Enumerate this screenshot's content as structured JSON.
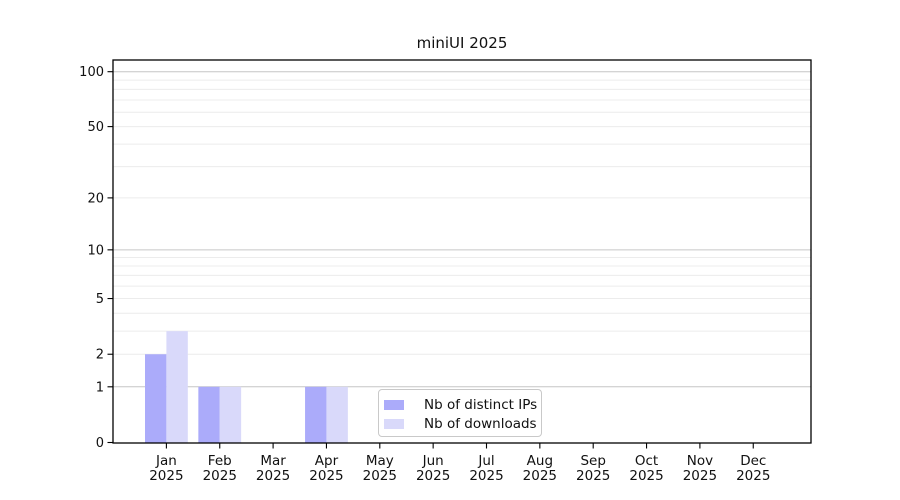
{
  "figure": {
    "background": "#ffffff"
  },
  "chart_data": {
    "type": "bar",
    "title": "miniUI 2025",
    "scale": "log1p",
    "categories": [
      "Jan",
      "Feb",
      "Mar",
      "Apr",
      "May",
      "Jun",
      "Jul",
      "Aug",
      "Sep",
      "Oct",
      "Nov",
      "Dec"
    ],
    "category_year": "2025",
    "series": [
      {
        "name": "Nb of distinct IPs",
        "color": "#ababfa",
        "values": [
          2,
          1,
          0,
          1,
          0,
          0,
          0,
          0,
          0,
          0,
          0,
          0
        ]
      },
      {
        "name": "Nb of downloads",
        "color": "#d9d9fa",
        "values": [
          3,
          1,
          0,
          1,
          0,
          0,
          0,
          0,
          0,
          0,
          0,
          0
        ]
      }
    ],
    "y_ticks": [
      0,
      1,
      2,
      5,
      10,
      20,
      50,
      100
    ],
    "ylim": [
      0,
      115
    ],
    "grid": {
      "major": [
        1,
        10,
        100
      ],
      "minor": [
        2,
        3,
        4,
        5,
        6,
        7,
        8,
        9,
        20,
        30,
        40,
        50,
        60,
        70,
        80,
        90
      ],
      "major_color": "#c6c6c6",
      "minor_color": "#ececec"
    },
    "legend_position": "bottom-center",
    "text_color": "#111111",
    "axis_color": "#000000"
  }
}
